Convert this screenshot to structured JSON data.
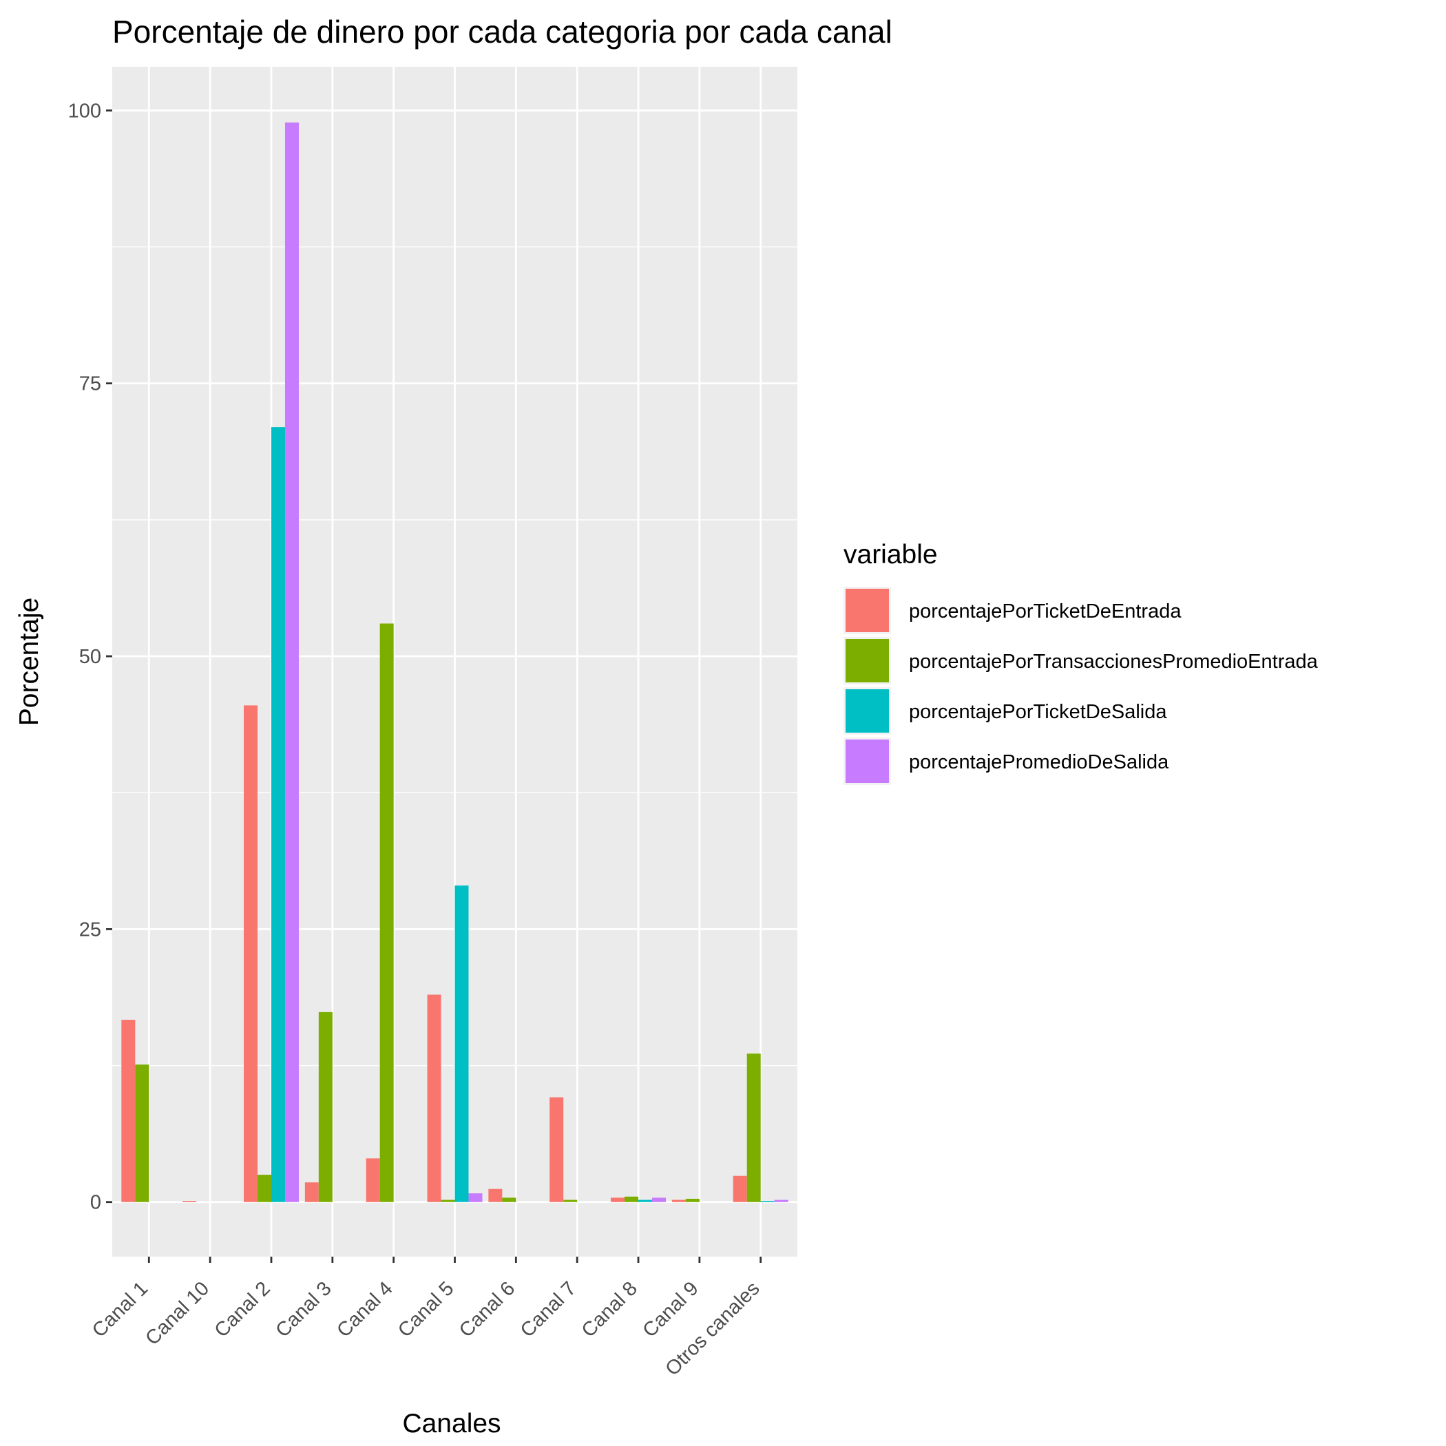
{
  "chart_data": {
    "type": "bar",
    "title": "Porcentaje de dinero por cada categoria por cada canal",
    "xlabel": "Canales",
    "ylabel": "Porcentaje",
    "ylim": [
      -5,
      104
    ],
    "yticks": [
      0,
      25,
      50,
      75,
      100
    ],
    "grid": true,
    "legend_title": "variable",
    "legend_position": "right",
    "categories": [
      "Canal 1",
      "Canal 10",
      "Canal 2",
      "Canal 3",
      "Canal 4",
      "Canal 5",
      "Canal 6",
      "Canal 7",
      "Canal 8",
      "Canal 9",
      "Otros canales"
    ],
    "series": [
      {
        "name": "porcentajePorTicketDeEntrada",
        "color": "#F8766D",
        "values": [
          16.7,
          0.1,
          45.5,
          1.8,
          4.0,
          19.0,
          1.2,
          9.6,
          0.4,
          0.2,
          2.4
        ]
      },
      {
        "name": "porcentajePorTransaccionesPromedioEntrada",
        "color": "#7CAE00",
        "values": [
          12.6,
          0.0,
          2.5,
          17.4,
          53.0,
          0.2,
          0.4,
          0.2,
          0.5,
          0.3,
          13.6
        ]
      },
      {
        "name": "porcentajePorTicketDeSalida",
        "color": "#00BFC4",
        "values": [
          0.0,
          0.0,
          71.0,
          0.0,
          0.0,
          29.0,
          0.0,
          0.0,
          0.2,
          0.0,
          0.1
        ]
      },
      {
        "name": "porcentajePromedioDeSalida",
        "color": "#C77CFF",
        "values": [
          0.0,
          0.0,
          98.9,
          0.0,
          0.0,
          0.8,
          0.0,
          0.0,
          0.4,
          0.0,
          0.2
        ]
      }
    ]
  }
}
